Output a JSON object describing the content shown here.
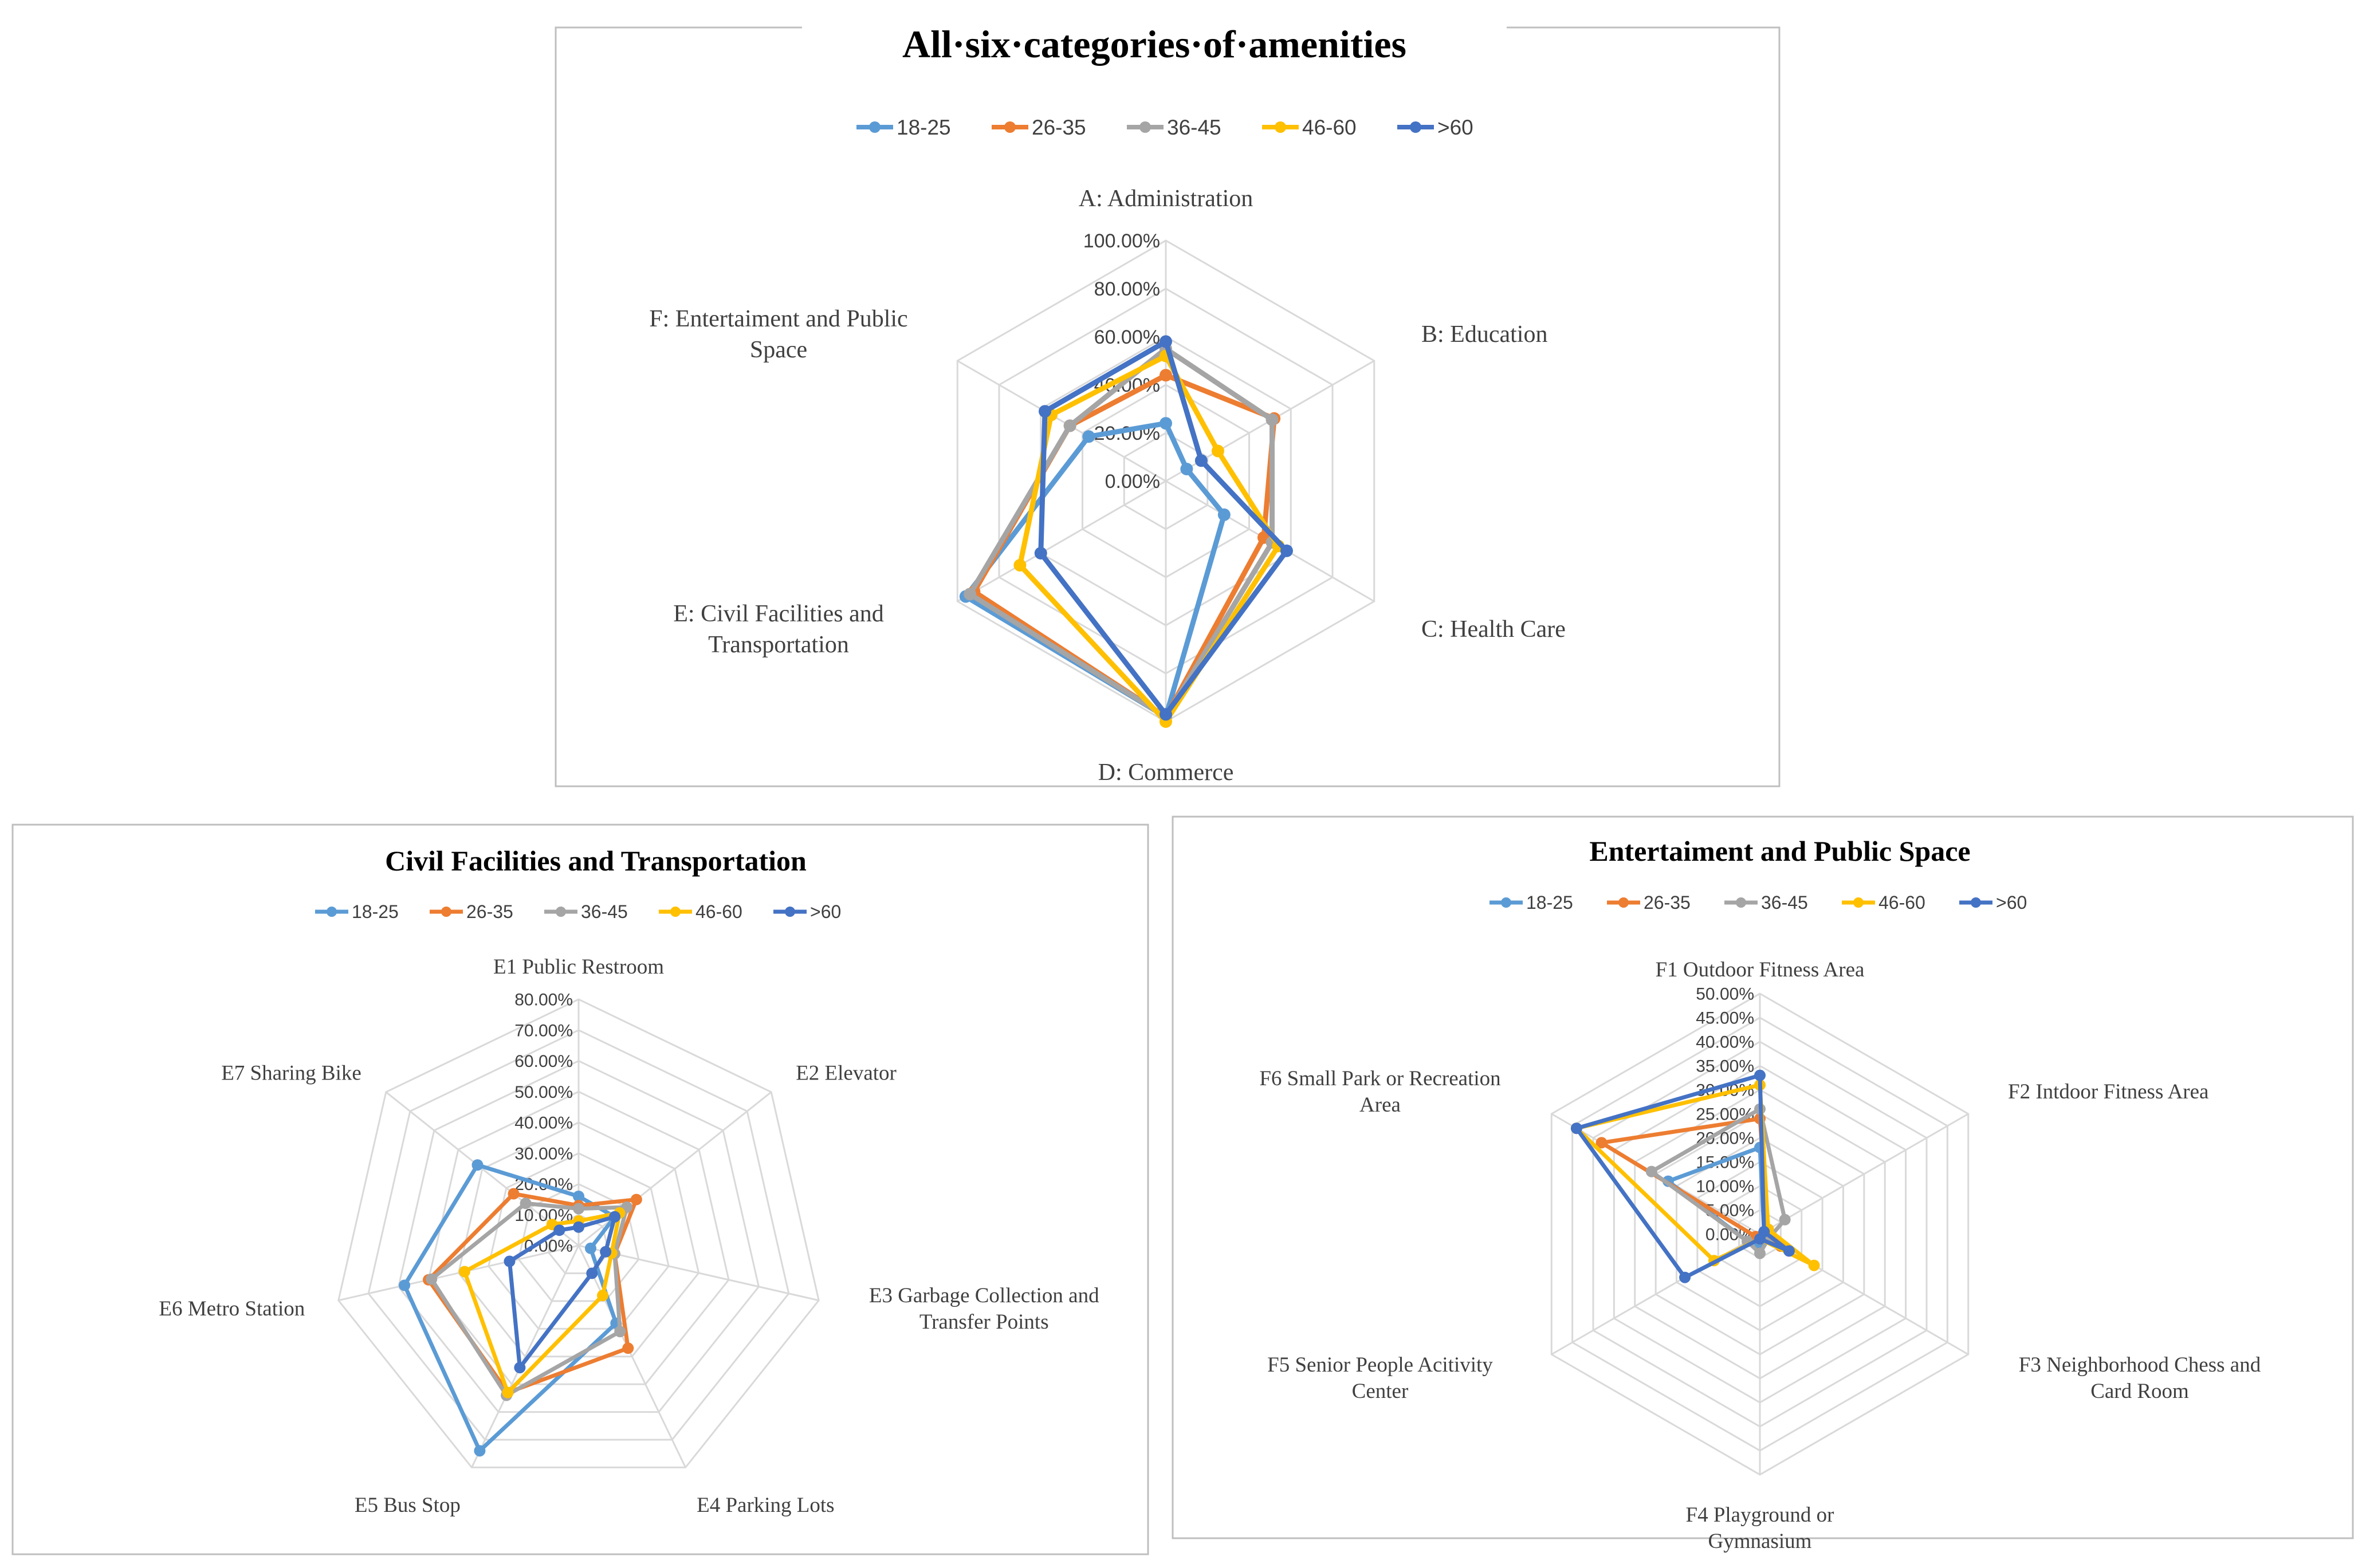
{
  "colors": {
    "18-25": "#5B9BD5",
    "26-35": "#ED7D31",
    "36-45": "#A5A5A5",
    "46-60": "#FFC000",
    ">60": "#4472C4",
    "grid": "#D9D9D9",
    "frame": "#BFBFBF",
    "text": "#404040"
  },
  "chart_data": [
    {
      "id": "amenities",
      "type": "radar",
      "title": "All·six·categories·of·amenities",
      "legend_position": "top",
      "axes": [
        {
          "label": [
            "A: Administration"
          ]
        },
        {
          "label": [
            "B: Education"
          ]
        },
        {
          "label": [
            "C: Health Care"
          ]
        },
        {
          "label": [
            "D: Commerce"
          ]
        },
        {
          "label": [
            "E: Civil Facilities and",
            "Transportation"
          ]
        },
        {
          "label": [
            "F: Entertaiment and Public",
            "Space"
          ]
        }
      ],
      "range": [
        0,
        100
      ],
      "tick_step": 20,
      "ticks": [
        "0.00%",
        "20.00%",
        "40.00%",
        "60.00%",
        "80.00%",
        "100.00%"
      ],
      "series": [
        {
          "name": "18-25",
          "values": [
            24,
            10,
            28,
            98,
            96,
            37
          ]
        },
        {
          "name": "26-35",
          "values": [
            44,
            52,
            47,
            98,
            92,
            46
          ]
        },
        {
          "name": "36-45",
          "values": [
            55,
            51,
            51,
            98,
            94,
            46
          ]
        },
        {
          "name": "46-60",
          "values": [
            52,
            25,
            54,
            100,
            70,
            55
          ]
        },
        {
          "name": ">60",
          "values": [
            58,
            17,
            58,
            97,
            60,
            58
          ]
        }
      ]
    },
    {
      "id": "civil",
      "type": "radar",
      "title": "Civil Facilities and Transportation",
      "legend_position": "top",
      "axes": [
        {
          "label": [
            "E1 Public Restroom"
          ]
        },
        {
          "label": [
            "E2 Elevator"
          ]
        },
        {
          "label": [
            "E3 Garbage Collection and",
            "Transfer Points"
          ]
        },
        {
          "label": [
            "E4 Parking Lots"
          ]
        },
        {
          "label": [
            "E5 Bus Stop"
          ]
        },
        {
          "label": [
            "E6 Metro Station"
          ]
        },
        {
          "label": [
            "E7 Sharing Bike"
          ]
        }
      ],
      "range": [
        0,
        80
      ],
      "tick_step": 10,
      "ticks": [
        "0.00%",
        "10.00%",
        "20.00%",
        "30.00%",
        "40.00%",
        "50.00%",
        "60.00%",
        "70.00%",
        "80.00%"
      ],
      "series": [
        {
          "name": "18-25",
          "values": [
            16,
            15,
            4,
            28,
            74,
            58,
            42
          ]
        },
        {
          "name": "26-35",
          "values": [
            13,
            24,
            12,
            37,
            53,
            50,
            27
          ]
        },
        {
          "name": "36-45",
          "values": [
            12,
            20,
            12,
            31,
            54,
            49,
            22
          ]
        },
        {
          "name": "46-60",
          "values": [
            8,
            17,
            11,
            18,
            53,
            38,
            11
          ]
        },
        {
          "name": ">60",
          "values": [
            6,
            15,
            9,
            10,
            44,
            23,
            8
          ]
        }
      ]
    },
    {
      "id": "entertainment",
      "type": "radar",
      "title": "Entertaiment and Public Space",
      "legend_position": "top",
      "axes": [
        {
          "label": [
            "F1 Outdoor Fitness Area"
          ]
        },
        {
          "label": [
            "F2 Intdoor Fitness Area"
          ]
        },
        {
          "label": [
            "F3 Neighborhood Chess and",
            "Card Room"
          ]
        },
        {
          "label": [
            "F4 Playground or",
            "Gymnasium"
          ]
        },
        {
          "label": [
            "F5 Senior People Acitivity",
            "Center"
          ]
        },
        {
          "label": [
            "F6 Small Park or Recreation",
            "Area"
          ]
        }
      ],
      "range": [
        0,
        50
      ],
      "tick_step": 5,
      "ticks": [
        "0.00%",
        "5.00%",
        "10.00%",
        "15.00%",
        "20.00%",
        "25.00%",
        "30.00%",
        "35.00%",
        "40.00%",
        "45.00%",
        "50.00%"
      ],
      "series": [
        {
          "name": "18-25",
          "values": [
            18,
            1,
            2,
            2,
            3,
            22
          ]
        },
        {
          "name": "26-35",
          "values": [
            24,
            2,
            5,
            1,
            1,
            38
          ]
        },
        {
          "name": "36-45",
          "values": [
            26,
            6,
            2,
            4,
            3,
            26
          ]
        },
        {
          "name": "46-60",
          "values": [
            31,
            2,
            13,
            1,
            11,
            44
          ]
        },
        {
          "name": ">60",
          "values": [
            33,
            1,
            7,
            1,
            18,
            44
          ]
        }
      ]
    }
  ]
}
